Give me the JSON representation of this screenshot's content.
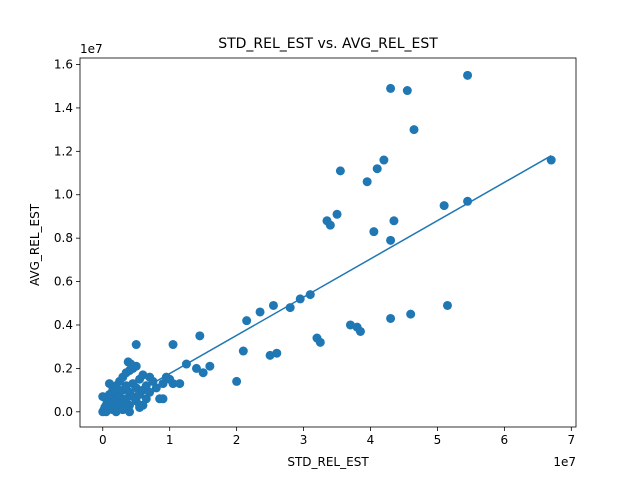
{
  "chart_data": {
    "type": "scatter",
    "title": "STD_REL_EST vs. AVG_REL_EST",
    "xlabel": "STD_REL_EST",
    "ylabel": "AVG_REL_EST",
    "x_offset_label": "1e7",
    "y_offset_label": "1e7",
    "xlim": [
      -0.34,
      7.07
    ],
    "ylim": [
      -0.07,
      1.63
    ],
    "x_ticks": [
      0,
      1,
      2,
      3,
      4,
      5,
      6,
      7
    ],
    "x_tick_labels": [
      "0",
      "1",
      "2",
      "3",
      "4",
      "5",
      "6",
      "7"
    ],
    "y_ticks": [
      0.0,
      0.2,
      0.4,
      0.6,
      0.8,
      1.0,
      1.2,
      1.4,
      1.6
    ],
    "y_tick_labels": [
      "0.0",
      "0.2",
      "0.4",
      "0.6",
      "0.8",
      "1.0",
      "1.2",
      "1.4",
      "1.6"
    ],
    "grid": false,
    "color": "#1f77b4",
    "points": [
      [
        0.0,
        0.0
      ],
      [
        0.02,
        0.01
      ],
      [
        0.03,
        0.02
      ],
      [
        0.05,
        0.0
      ],
      [
        0.05,
        0.03
      ],
      [
        0.08,
        0.01
      ],
      [
        0.1,
        0.02
      ],
      [
        0.12,
        0.04
      ],
      [
        0.15,
        0.01
      ],
      [
        0.15,
        0.06
      ],
      [
        0.18,
        0.03
      ],
      [
        0.2,
        0.05
      ],
      [
        0.0,
        0.07
      ],
      [
        0.05,
        0.06
      ],
      [
        0.1,
        0.08
      ],
      [
        0.2,
        0.09
      ],
      [
        0.25,
        0.02
      ],
      [
        0.25,
        0.07
      ],
      [
        0.3,
        0.04
      ],
      [
        0.3,
        0.1
      ],
      [
        0.35,
        0.06
      ],
      [
        0.35,
        0.12
      ],
      [
        0.4,
        0.03
      ],
      [
        0.4,
        0.09
      ],
      [
        0.45,
        0.07
      ],
      [
        0.45,
        0.13
      ],
      [
        0.5,
        0.05
      ],
      [
        0.5,
        0.11
      ],
      [
        0.55,
        0.08
      ],
      [
        0.55,
        0.15
      ],
      [
        0.6,
        0.1
      ],
      [
        0.6,
        0.17
      ],
      [
        0.2,
        0.12
      ],
      [
        0.25,
        0.14
      ],
      [
        0.3,
        0.16
      ],
      [
        0.35,
        0.18
      ],
      [
        0.4,
        0.19
      ],
      [
        0.45,
        0.2
      ],
      [
        0.5,
        0.21
      ],
      [
        0.38,
        0.23
      ],
      [
        0.42,
        0.22
      ],
      [
        0.65,
        0.12
      ],
      [
        0.65,
        0.06
      ],
      [
        0.7,
        0.09
      ],
      [
        0.75,
        0.14
      ],
      [
        0.8,
        0.11
      ],
      [
        0.2,
        0.0
      ],
      [
        0.3,
        0.01
      ],
      [
        0.4,
        0.0
      ],
      [
        0.55,
        0.02
      ],
      [
        0.6,
        0.03
      ],
      [
        0.1,
        0.13
      ],
      [
        0.15,
        0.1
      ],
      [
        0.5,
        0.31
      ],
      [
        0.55,
        0.03
      ],
      [
        0.7,
        0.16
      ],
      [
        0.85,
        0.06
      ],
      [
        0.9,
        0.13
      ],
      [
        0.95,
        0.16
      ],
      [
        1.0,
        0.15
      ],
      [
        0.9,
        0.06
      ],
      [
        1.05,
        0.31
      ],
      [
        1.05,
        0.13
      ],
      [
        1.15,
        0.13
      ],
      [
        1.25,
        0.22
      ],
      [
        1.4,
        0.2
      ],
      [
        1.45,
        0.35
      ],
      [
        1.5,
        0.18
      ],
      [
        1.6,
        0.21
      ],
      [
        2.0,
        0.14
      ],
      [
        2.1,
        0.28
      ],
      [
        2.15,
        0.42
      ],
      [
        2.35,
        0.46
      ],
      [
        2.5,
        0.26
      ],
      [
        2.55,
        0.49
      ],
      [
        2.6,
        0.27
      ],
      [
        2.8,
        0.48
      ],
      [
        2.95,
        0.52
      ],
      [
        3.1,
        0.54
      ],
      [
        3.2,
        0.34
      ],
      [
        3.25,
        0.32
      ],
      [
        3.35,
        0.88
      ],
      [
        3.4,
        0.86
      ],
      [
        3.5,
        0.91
      ],
      [
        3.55,
        1.11
      ],
      [
        3.7,
        0.4
      ],
      [
        3.8,
        0.39
      ],
      [
        3.85,
        0.37
      ],
      [
        3.95,
        1.06
      ],
      [
        4.05,
        0.83
      ],
      [
        4.1,
        1.12
      ],
      [
        4.2,
        1.16
      ],
      [
        4.3,
        0.43
      ],
      [
        4.3,
        0.79
      ],
      [
        4.3,
        1.49
      ],
      [
        4.35,
        0.88
      ],
      [
        4.55,
        1.48
      ],
      [
        4.6,
        0.45
      ],
      [
        4.65,
        1.3
      ],
      [
        5.1,
        0.95
      ],
      [
        5.15,
        0.49
      ],
      [
        5.45,
        0.97
      ],
      [
        5.45,
        1.55
      ],
      [
        6.7,
        1.16
      ]
    ],
    "trendline": {
      "x": [
        0.0,
        6.7
      ],
      "y": [
        0.0,
        1.18
      ]
    }
  }
}
